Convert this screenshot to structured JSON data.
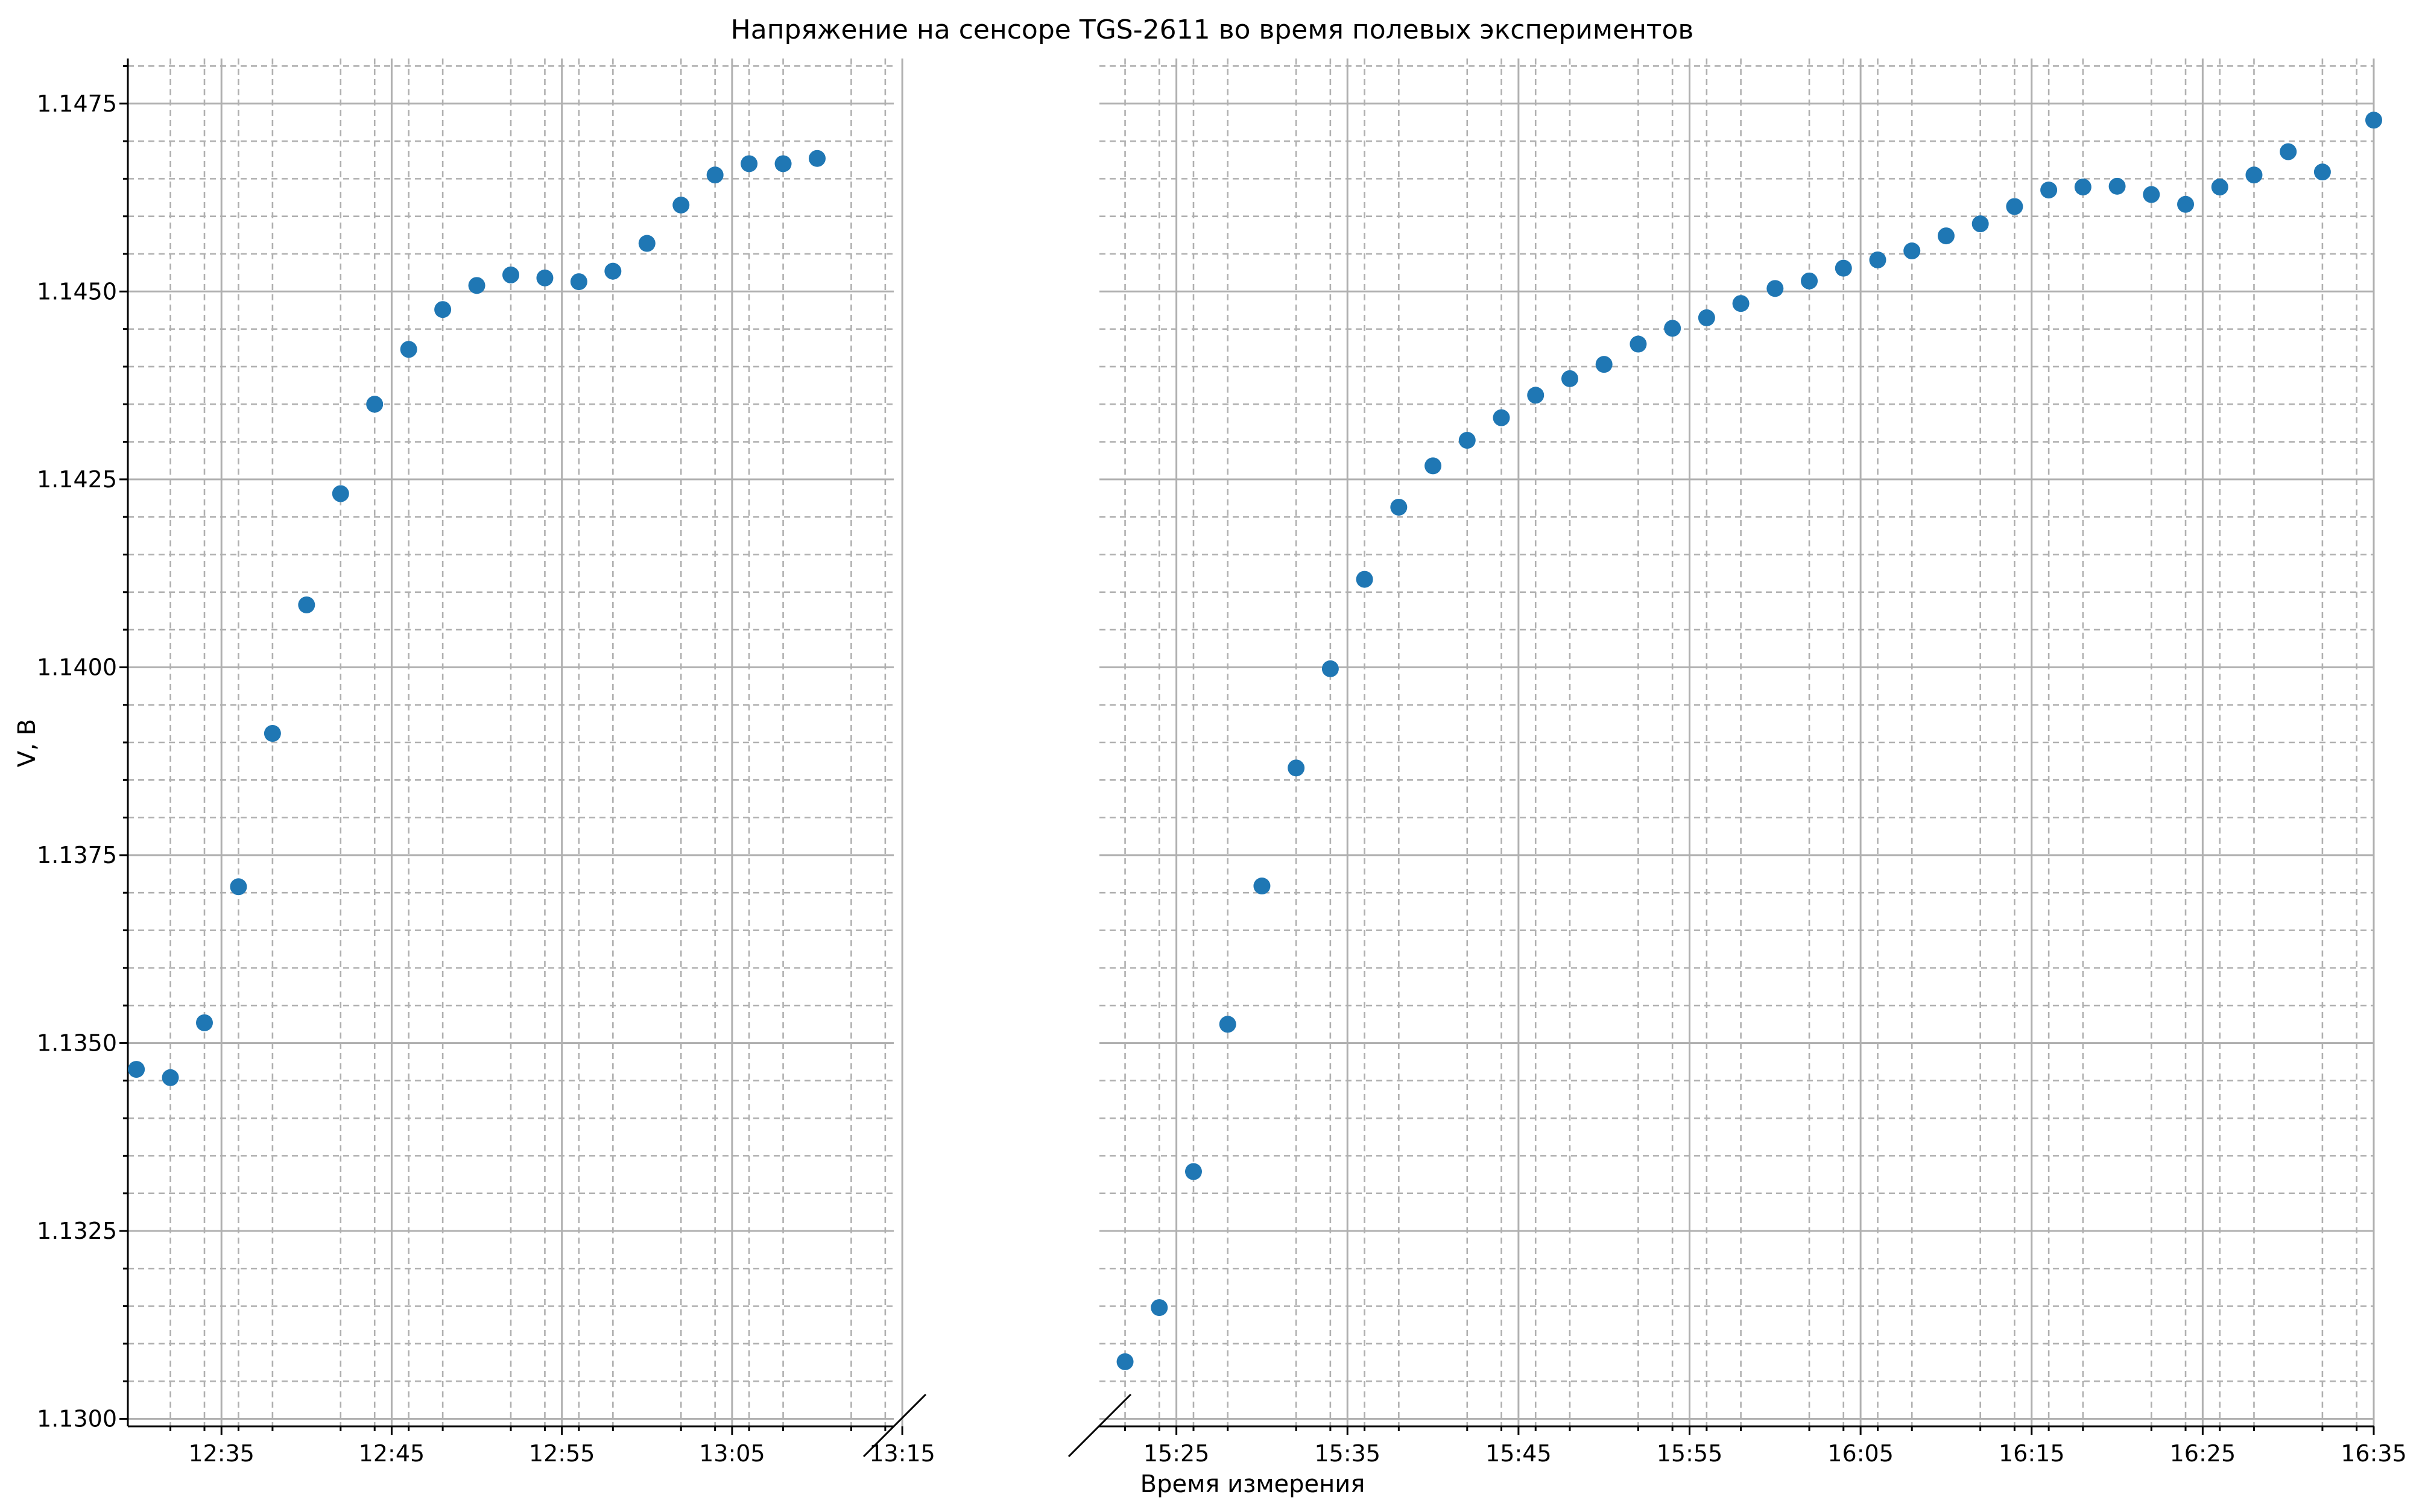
{
  "chart_data": {
    "type": "scatter",
    "title": "Напряжение на сенсоре TGS-2611 во время полевых экспериментов",
    "xlabel": "Время измерения",
    "ylabel": "V, В",
    "ylim": [
      1.1299,
      1.1481
    ],
    "y_ticks": [
      "1.1300",
      "1.1325",
      "1.1350",
      "1.1375",
      "1.1400",
      "1.1425",
      "1.1450",
      "1.1475"
    ],
    "grid": true,
    "point_color": "#1f77b4",
    "broken_x_axis": true,
    "segments": [
      {
        "xlim": [
          "12:29:30",
          "13:14:30"
        ],
        "x_ticks": [
          "12:35",
          "12:45",
          "12:55",
          "13:05",
          "13:15"
        ],
        "points": [
          {
            "x": "12:30",
            "y": 1.13465
          },
          {
            "x": "12:32",
            "y": 1.13454
          },
          {
            "x": "12:34",
            "y": 1.13527
          },
          {
            "x": "12:36",
            "y": 1.13708
          },
          {
            "x": "12:38",
            "y": 1.13912
          },
          {
            "x": "12:40",
            "y": 1.14083
          },
          {
            "x": "12:42",
            "y": 1.14231
          },
          {
            "x": "12:44",
            "y": 1.1435
          },
          {
            "x": "12:46",
            "y": 1.14423
          },
          {
            "x": "12:48",
            "y": 1.14476
          },
          {
            "x": "12:50",
            "y": 1.14508
          },
          {
            "x": "12:52",
            "y": 1.14522
          },
          {
            "x": "12:54",
            "y": 1.14518
          },
          {
            "x": "12:56",
            "y": 1.14513
          },
          {
            "x": "12:58",
            "y": 1.14527
          },
          {
            "x": "13:00",
            "y": 1.14564
          },
          {
            "x": "13:02",
            "y": 1.14615
          },
          {
            "x": "13:04",
            "y": 1.14655
          },
          {
            "x": "13:06",
            "y": 1.1467
          },
          {
            "x": "13:08",
            "y": 1.1467
          },
          {
            "x": "13:10",
            "y": 1.14677
          }
        ]
      },
      {
        "xlim": [
          "15:20:30",
          "16:35:00"
        ],
        "x_ticks": [
          "15:25",
          "15:35",
          "15:45",
          "15:55",
          "16:05",
          "16:15",
          "16:25",
          "16:35"
        ],
        "points": [
          {
            "x": "15:22",
            "y": 1.13076
          },
          {
            "x": "15:24",
            "y": 1.13148
          },
          {
            "x": "15:26",
            "y": 1.13329
          },
          {
            "x": "15:28",
            "y": 1.13525
          },
          {
            "x": "15:30",
            "y": 1.13709
          },
          {
            "x": "15:32",
            "y": 1.13866
          },
          {
            "x": "15:34",
            "y": 1.13998
          },
          {
            "x": "15:36",
            "y": 1.14117
          },
          {
            "x": "15:38",
            "y": 1.14213
          },
          {
            "x": "15:40",
            "y": 1.14268
          },
          {
            "x": "15:42",
            "y": 1.14302
          },
          {
            "x": "15:44",
            "y": 1.14332
          },
          {
            "x": "15:46",
            "y": 1.14362
          },
          {
            "x": "15:48",
            "y": 1.14384
          },
          {
            "x": "15:50",
            "y": 1.14403
          },
          {
            "x": "15:52",
            "y": 1.1443
          },
          {
            "x": "15:54",
            "y": 1.14451
          },
          {
            "x": "15:56",
            "y": 1.14465
          },
          {
            "x": "15:58",
            "y": 1.14484
          },
          {
            "x": "16:00",
            "y": 1.14504
          },
          {
            "x": "16:02",
            "y": 1.14514
          },
          {
            "x": "16:04",
            "y": 1.14531
          },
          {
            "x": "16:06",
            "y": 1.14542
          },
          {
            "x": "16:08",
            "y": 1.14554
          },
          {
            "x": "16:10",
            "y": 1.14574
          },
          {
            "x": "16:12",
            "y": 1.1459
          },
          {
            "x": "16:14",
            "y": 1.14613
          },
          {
            "x": "16:16",
            "y": 1.14635
          },
          {
            "x": "16:18",
            "y": 1.14639
          },
          {
            "x": "16:20",
            "y": 1.1464
          },
          {
            "x": "16:22",
            "y": 1.14629
          },
          {
            "x": "16:24",
            "y": 1.14616
          },
          {
            "x": "16:26",
            "y": 1.14639
          },
          {
            "x": "16:28",
            "y": 1.14655
          },
          {
            "x": "16:30",
            "y": 1.14686
          },
          {
            "x": "16:32",
            "y": 1.14659
          },
          {
            "x": "16:35",
            "y": 1.14728
          }
        ]
      }
    ]
  }
}
